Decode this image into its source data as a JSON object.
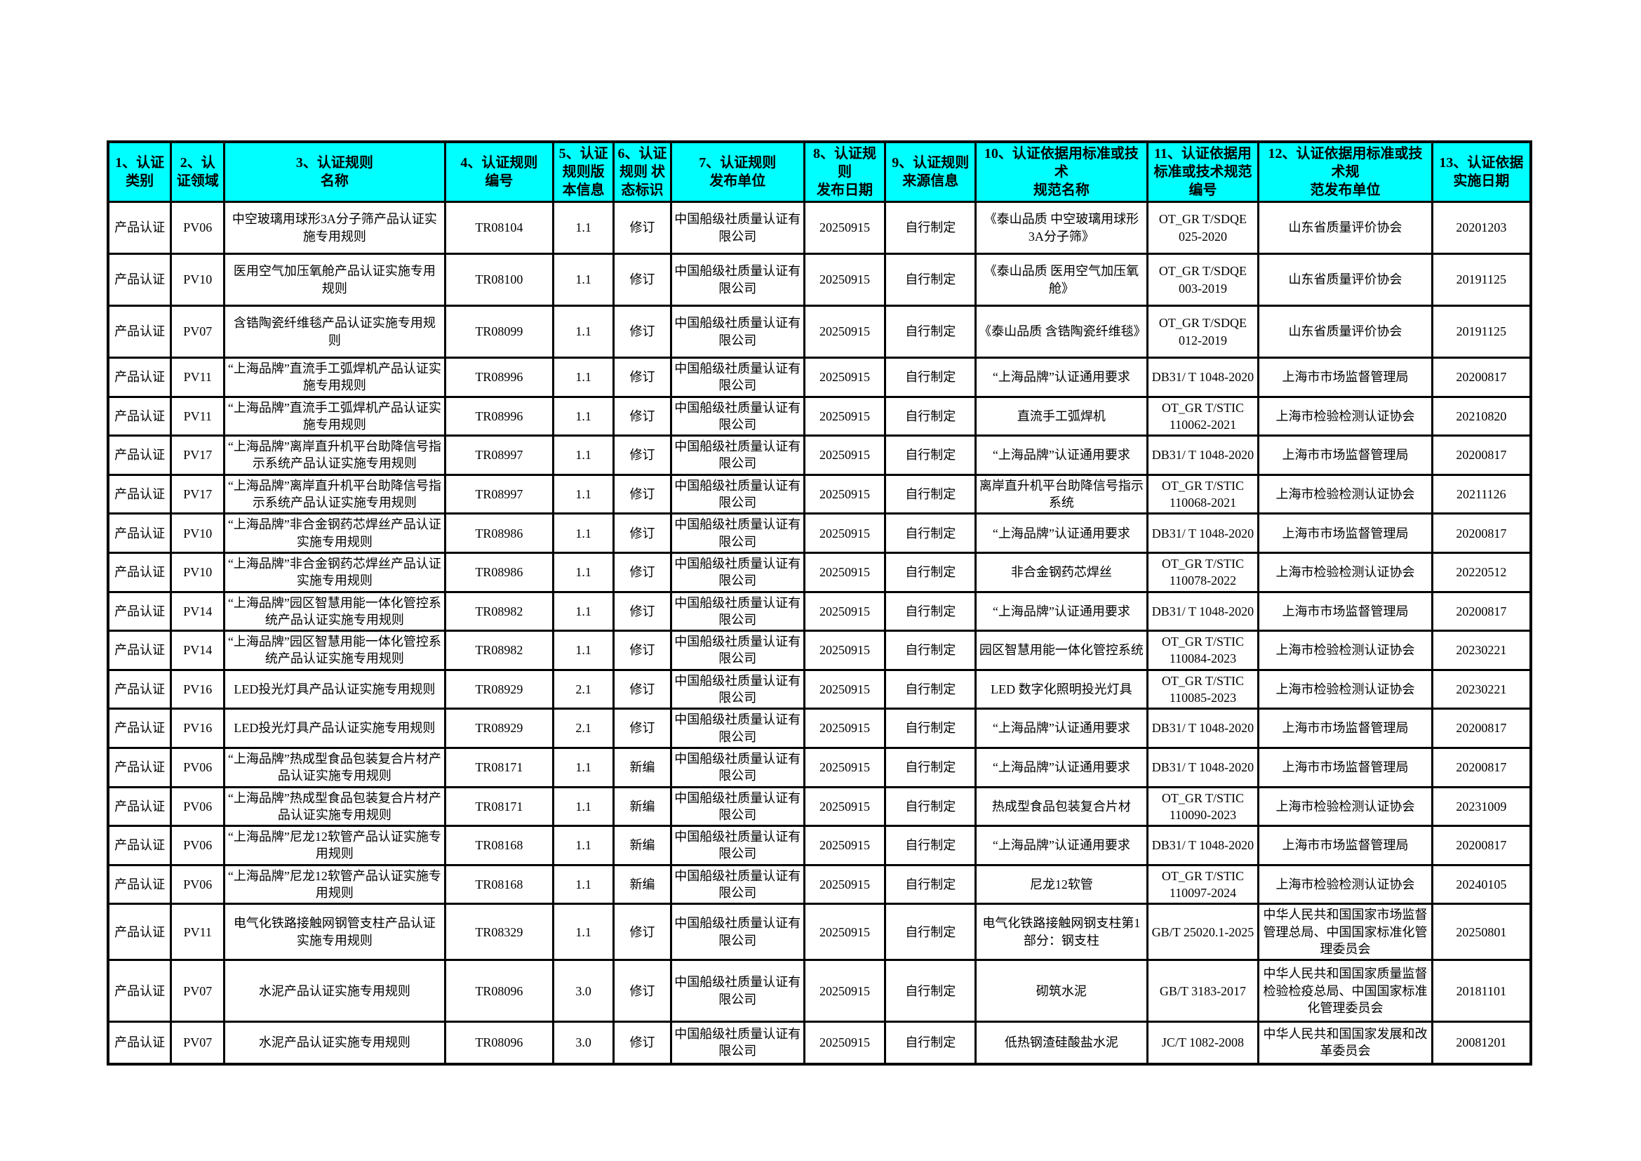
{
  "table": {
    "header_bg": "#00ffff",
    "grid_color": "#000000",
    "columns": [
      "1、认证类别",
      "2、认证领域",
      "3、认证规则\n名称",
      "4、认证规则\n编号",
      "5、认证规则版本信息",
      "6、认证规则 状态标识",
      "7、认证规则\n发布单位",
      "8、认证规则\n发布日期",
      "9、认证规则\n来源信息",
      "10、认证依据用标准或技术\n规范名称",
      "11、认证依据用标准或技术规范编号",
      "12、认证依据用标准或技术规\n范发布单位",
      "13、认证依据\n实施日期"
    ],
    "rows": [
      [
        "产品认证",
        "PV06",
        "中空玻璃用球形3A分子筛产品认证实施专用规则",
        "TR08104",
        "1.1",
        "修订",
        "中国船级社质量认证有限公司",
        "20250915",
        "自行制定",
        "《泰山品质 中空玻璃用球形3A分子筛》",
        "OT_GR T/SDQE 025-2020",
        "山东省质量评价协会",
        "20201203"
      ],
      [
        "产品认证",
        "PV10",
        "医用空气加压氧舱产品认证实施专用规则",
        "TR08100",
        "1.1",
        "修订",
        "中国船级社质量认证有限公司",
        "20250915",
        "自行制定",
        "《泰山品质 医用空气加压氧舱》",
        "OT_GR T/SDQE 003-2019",
        "山东省质量评价协会",
        "20191125"
      ],
      [
        "产品认证",
        "PV07",
        "含锆陶瓷纤维毯产品认证实施专用规则",
        "TR08099",
        "1.1",
        "修订",
        "中国船级社质量认证有限公司",
        "20250915",
        "自行制定",
        "《泰山品质 含锆陶瓷纤维毯》",
        "OT_GR T/SDQE 012-2019",
        "山东省质量评价协会",
        "20191125"
      ],
      [
        "产品认证",
        "PV11",
        "“上海品牌”直流手工弧焊机产品认证实施专用规则",
        "TR08996",
        "1.1",
        "修订",
        "中国船级社质量认证有限公司",
        "20250915",
        "自行制定",
        "“上海品牌”认证通用要求",
        "DB31/ T 1048-2020",
        "上海市市场监督管理局",
        "20200817"
      ],
      [
        "产品认证",
        "PV11",
        "“上海品牌”直流手工弧焊机产品认证实施专用规则",
        "TR08996",
        "1.1",
        "修订",
        "中国船级社质量认证有限公司",
        "20250915",
        "自行制定",
        "直流手工弧焊机",
        "OT_GR T/STIC 110062-2021",
        "上海市检验检测认证协会",
        "20210820"
      ],
      [
        "产品认证",
        "PV17",
        "“上海品牌”离岸直升机平台助降信号指示系统产品认证实施专用规则",
        "TR08997",
        "1.1",
        "修订",
        "中国船级社质量认证有限公司",
        "20250915",
        "自行制定",
        "“上海品牌”认证通用要求",
        "DB31/ T 1048-2020",
        "上海市市场监督管理局",
        "20200817"
      ],
      [
        "产品认证",
        "PV17",
        "“上海品牌”离岸直升机平台助降信号指示系统产品认证实施专用规则",
        "TR08997",
        "1.1",
        "修订",
        "中国船级社质量认证有限公司",
        "20250915",
        "自行制定",
        "离岸直升机平台助降信号指示系统",
        "OT_GR T/STIC 110068-2021",
        "上海市检验检测认证协会",
        "20211126"
      ],
      [
        "产品认证",
        "PV10",
        "“上海品牌”非合金钢药芯焊丝产品认证实施专用规则",
        "TR08986",
        "1.1",
        "修订",
        "中国船级社质量认证有限公司",
        "20250915",
        "自行制定",
        "“上海品牌”认证通用要求",
        "DB31/ T 1048-2020",
        "上海市市场监督管理局",
        "20200817"
      ],
      [
        "产品认证",
        "PV10",
        "“上海品牌”非合金钢药芯焊丝产品认证实施专用规则",
        "TR08986",
        "1.1",
        "修订",
        "中国船级社质量认证有限公司",
        "20250915",
        "自行制定",
        "非合金钢药芯焊丝",
        "OT_GR T/STIC 110078-2022",
        "上海市检验检测认证协会",
        "20220512"
      ],
      [
        "产品认证",
        "PV14",
        "“上海品牌”园区智慧用能一体化管控系统产品认证实施专用规则",
        "TR08982",
        "1.1",
        "修订",
        "中国船级社质量认证有限公司",
        "20250915",
        "自行制定",
        "“上海品牌”认证通用要求",
        "DB31/ T 1048-2020",
        "上海市市场监督管理局",
        "20200817"
      ],
      [
        "产品认证",
        "PV14",
        "“上海品牌”园区智慧用能一体化管控系统产品认证实施专用规则",
        "TR08982",
        "1.1",
        "修订",
        "中国船级社质量认证有限公司",
        "20250915",
        "自行制定",
        "园区智慧用能一体化管控系统",
        "OT_GR T/STIC 110084-2023",
        "上海市检验检测认证协会",
        "20230221"
      ],
      [
        "产品认证",
        "PV16",
        "LED投光灯具产品认证实施专用规则",
        "TR08929",
        "2.1",
        "修订",
        "中国船级社质量认证有限公司",
        "20250915",
        "自行制定",
        "LED 数字化照明投光灯具",
        "OT_GR T/STIC 110085-2023",
        "上海市检验检测认证协会",
        "20230221"
      ],
      [
        "产品认证",
        "PV16",
        "LED投光灯具产品认证实施专用规则",
        "TR08929",
        "2.1",
        "修订",
        "中国船级社质量认证有限公司",
        "20250915",
        "自行制定",
        "“上海品牌”认证通用要求",
        "DB31/ T 1048-2020",
        "上海市市场监督管理局",
        "20200817"
      ],
      [
        "产品认证",
        "PV06",
        "“上海品牌”热成型食品包装复合片材产品认证实施专用规则",
        "TR08171",
        "1.1",
        "新编",
        "中国船级社质量认证有限公司",
        "20250915",
        "自行制定",
        "“上海品牌”认证通用要求",
        "DB31/ T 1048-2020",
        "上海市市场监督管理局",
        "20200817"
      ],
      [
        "产品认证",
        "PV06",
        "“上海品牌”热成型食品包装复合片材产品认证实施专用规则",
        "TR08171",
        "1.1",
        "新编",
        "中国船级社质量认证有限公司",
        "20250915",
        "自行制定",
        "热成型食品包装复合片材",
        "OT_GR T/STIC 110090-2023",
        "上海市检验检测认证协会",
        "20231009"
      ],
      [
        "产品认证",
        "PV06",
        "“上海品牌”尼龙12软管产品认证实施专用规则",
        "TR08168",
        "1.1",
        "新编",
        "中国船级社质量认证有限公司",
        "20250915",
        "自行制定",
        "“上海品牌”认证通用要求",
        "DB31/ T 1048-2020",
        "上海市市场监督管理局",
        "20200817"
      ],
      [
        "产品认证",
        "PV06",
        "“上海品牌”尼龙12软管产品认证实施专用规则",
        "TR08168",
        "1.1",
        "新编",
        "中国船级社质量认证有限公司",
        "20250915",
        "自行制定",
        "尼龙12软管",
        "OT_GR T/STIC 110097-2024",
        "上海市检验检测认证协会",
        "20240105"
      ],
      [
        "产品认证",
        "PV11",
        "电气化铁路接触网钢管支柱产品认证实施专用规则",
        "TR08329",
        "1.1",
        "修订",
        "中国船级社质量认证有限公司",
        "20250915",
        "自行制定",
        "电气化铁路接触网钢支柱第1部分：钢支柱",
        "GB/T 25020.1-2025",
        "中华人民共和国国家市场监督管理总局、中国国家标准化管理委员会",
        "20250801"
      ],
      [
        "产品认证",
        "PV07",
        "水泥产品认证实施专用规则",
        "TR08096",
        "3.0",
        "修订",
        "中国船级社质量认证有限公司",
        "20250915",
        "自行制定",
        "砌筑水泥",
        "GB/T 3183-2017",
        "中华人民共和国国家质量监督检验检疫总局、中国国家标准化管理委员会",
        "20181101"
      ],
      [
        "产品认证",
        "PV07",
        "水泥产品认证实施专用规则",
        "TR08096",
        "3.0",
        "修订",
        "中国船级社质量认证有限公司",
        "20250915",
        "自行制定",
        "低热钢渣硅酸盐水泥",
        "JC/T 1082-2008",
        "中华人民共和国国家发展和改革委员会",
        "20081201"
      ]
    ]
  }
}
